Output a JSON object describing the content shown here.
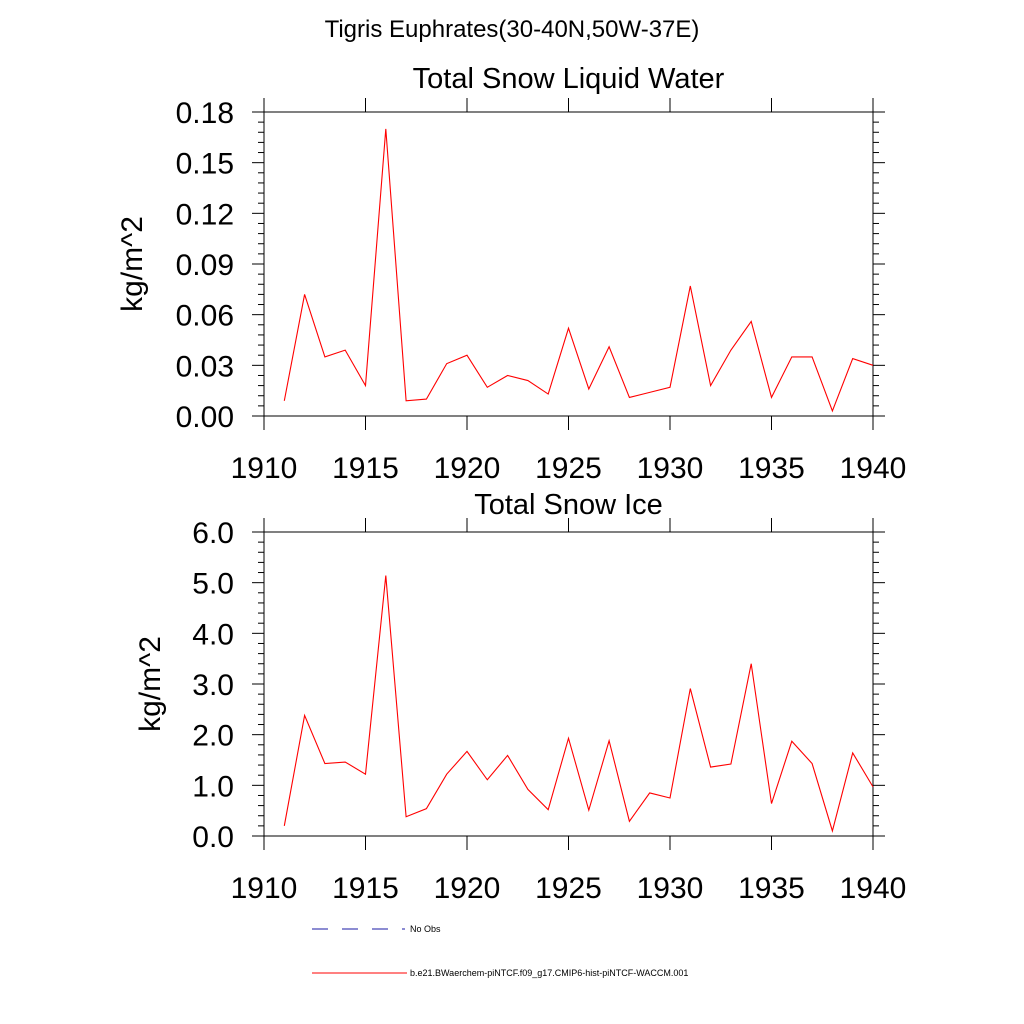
{
  "figure_title": "Tigris Euphrates(30-40N,50W-37E)",
  "legend": [
    {
      "label": "No Obs",
      "color": "#1a1aa6",
      "style": "dashed"
    },
    {
      "label": "b.e21.BWaerchem-piNTCF.f09_g17.CMIP6-hist-piNTCF-WACCM.001",
      "color": "#ff0000",
      "style": "solid"
    }
  ],
  "chart_data": [
    {
      "type": "line",
      "title": "Total Snow Liquid Water",
      "ylabel": "kg/m^2",
      "xlim": [
        1910,
        1940
      ],
      "ylim": [
        0,
        0.18
      ],
      "xticks": [
        1910,
        1915,
        1920,
        1925,
        1930,
        1935,
        1940
      ],
      "xtick_labels": [
        "1910",
        "1915",
        "1920",
        "1925",
        "1930",
        "1935",
        "1940"
      ],
      "yticks": [
        0,
        0.03,
        0.06,
        0.09,
        0.12,
        0.15,
        0.18
      ],
      "ytick_labels": [
        "0.00",
        "0.03",
        "0.06",
        "0.09",
        "0.12",
        "0.15",
        "0.18"
      ],
      "x": [
        1911,
        1912,
        1913,
        1914,
        1915,
        1916,
        1917,
        1918,
        1919,
        1920,
        1921,
        1922,
        1923,
        1924,
        1925,
        1926,
        1927,
        1928,
        1929,
        1930,
        1931,
        1932,
        1933,
        1934,
        1935,
        1936,
        1937,
        1938,
        1939,
        1940
      ],
      "series": [
        {
          "color": "#ff0000",
          "values": [
            0.009,
            0.072,
            0.035,
            0.039,
            0.018,
            0.17,
            0.009,
            0.01,
            0.031,
            0.036,
            0.017,
            0.024,
            0.021,
            0.013,
            0.052,
            0.016,
            0.041,
            0.011,
            0.014,
            0.017,
            0.077,
            0.018,
            0.039,
            0.056,
            0.011,
            0.035,
            0.035,
            0.003,
            0.034,
            0.03
          ]
        }
      ]
    },
    {
      "type": "line",
      "title": "Total Snow Ice",
      "ylabel": "kg/m^2",
      "xlim": [
        1910,
        1940
      ],
      "ylim": [
        0,
        6
      ],
      "xticks": [
        1910,
        1915,
        1920,
        1925,
        1930,
        1935,
        1940
      ],
      "xtick_labels": [
        "1910",
        "1915",
        "1920",
        "1925",
        "1930",
        "1935",
        "1940"
      ],
      "yticks": [
        0,
        1,
        2,
        3,
        4,
        5,
        6
      ],
      "ytick_labels": [
        "0.0",
        "1.0",
        "2.0",
        "3.0",
        "4.0",
        "5.0",
        "6.0"
      ],
      "x": [
        1911,
        1912,
        1913,
        1914,
        1915,
        1916,
        1917,
        1918,
        1919,
        1920,
        1921,
        1922,
        1923,
        1924,
        1925,
        1926,
        1927,
        1928,
        1929,
        1930,
        1931,
        1932,
        1933,
        1934,
        1935,
        1936,
        1937,
        1938,
        1939,
        1940
      ],
      "series": [
        {
          "color": "#ff0000",
          "values": [
            0.2,
            2.38,
            1.43,
            1.46,
            1.22,
            5.14,
            0.38,
            0.54,
            1.22,
            1.67,
            1.11,
            1.59,
            0.92,
            0.52,
            1.93,
            0.51,
            1.88,
            0.29,
            0.85,
            0.75,
            2.91,
            1.36,
            1.42,
            3.4,
            0.64,
            1.87,
            1.43,
            0.1,
            1.64,
            0.97
          ]
        }
      ]
    }
  ]
}
